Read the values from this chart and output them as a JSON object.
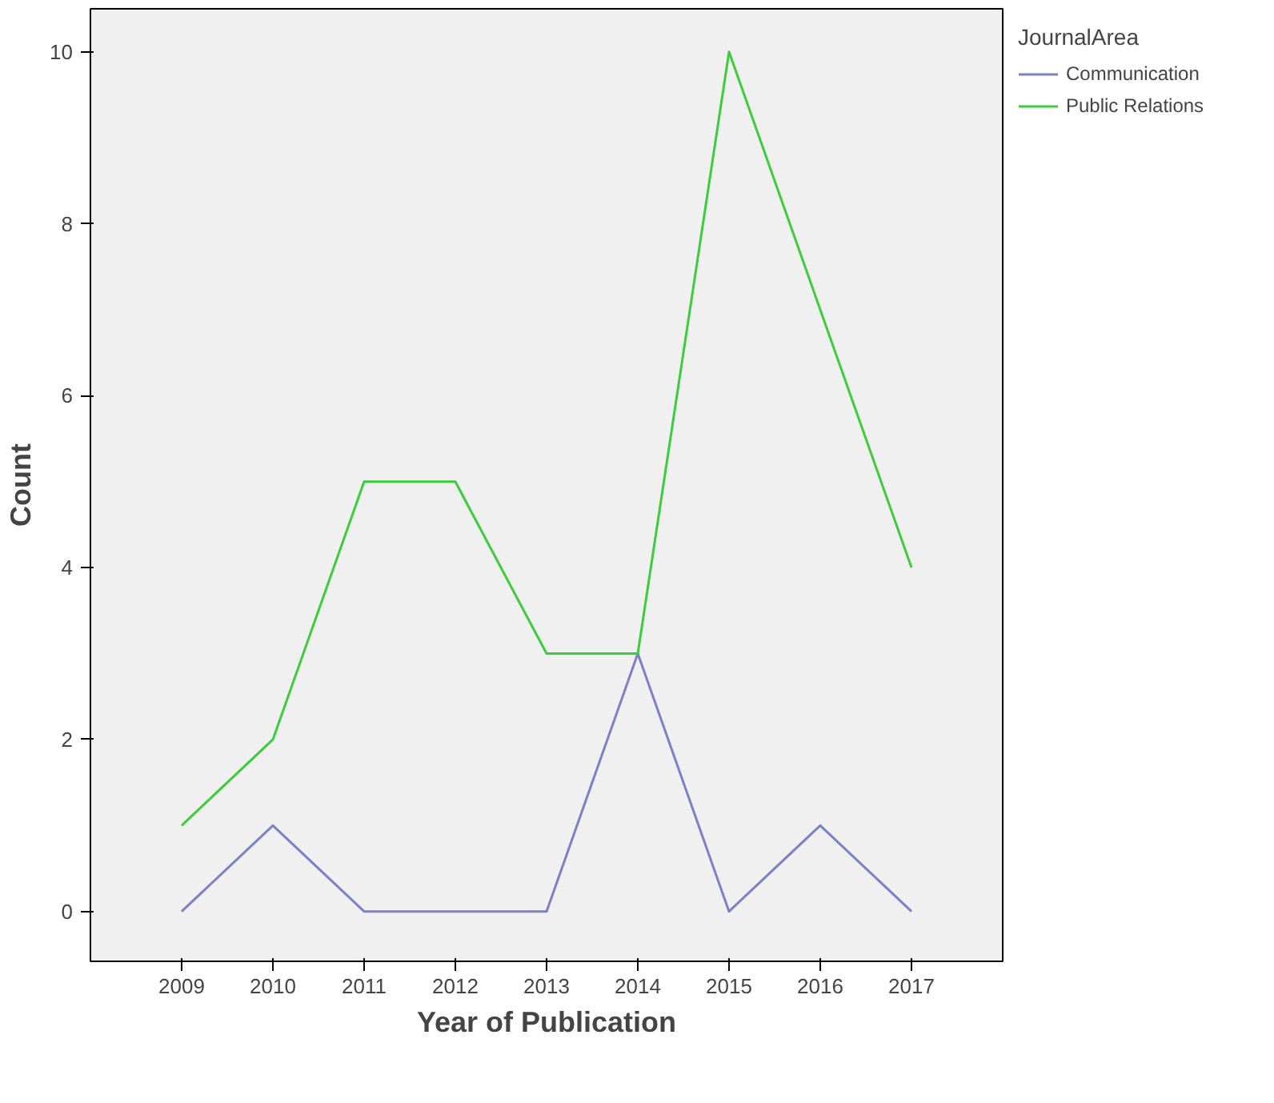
{
  "chart_data": {
    "type": "line",
    "xlabel": "Year of Publication",
    "ylabel": "Count",
    "legend_title": "JournalArea",
    "categories": [
      "2009",
      "2010",
      "2011",
      "2012",
      "2013",
      "2014",
      "2015",
      "2016",
      "2017"
    ],
    "series": [
      {
        "name": "Communication",
        "color": "#7c80c8",
        "values": [
          0,
          1,
          0,
          0,
          0,
          3,
          0,
          1,
          0
        ]
      },
      {
        "name": "Public Relations",
        "color": "#3ccc3c",
        "values": [
          1,
          2,
          5,
          5,
          3,
          3,
          10,
          7,
          4
        ]
      }
    ],
    "ylim": [
      -0.58,
      10.5
    ],
    "yticks": [
      0,
      2,
      4,
      6,
      8,
      10
    ],
    "grid": false,
    "legend": "top right",
    "marker": "none",
    "line_style": "solid"
  }
}
